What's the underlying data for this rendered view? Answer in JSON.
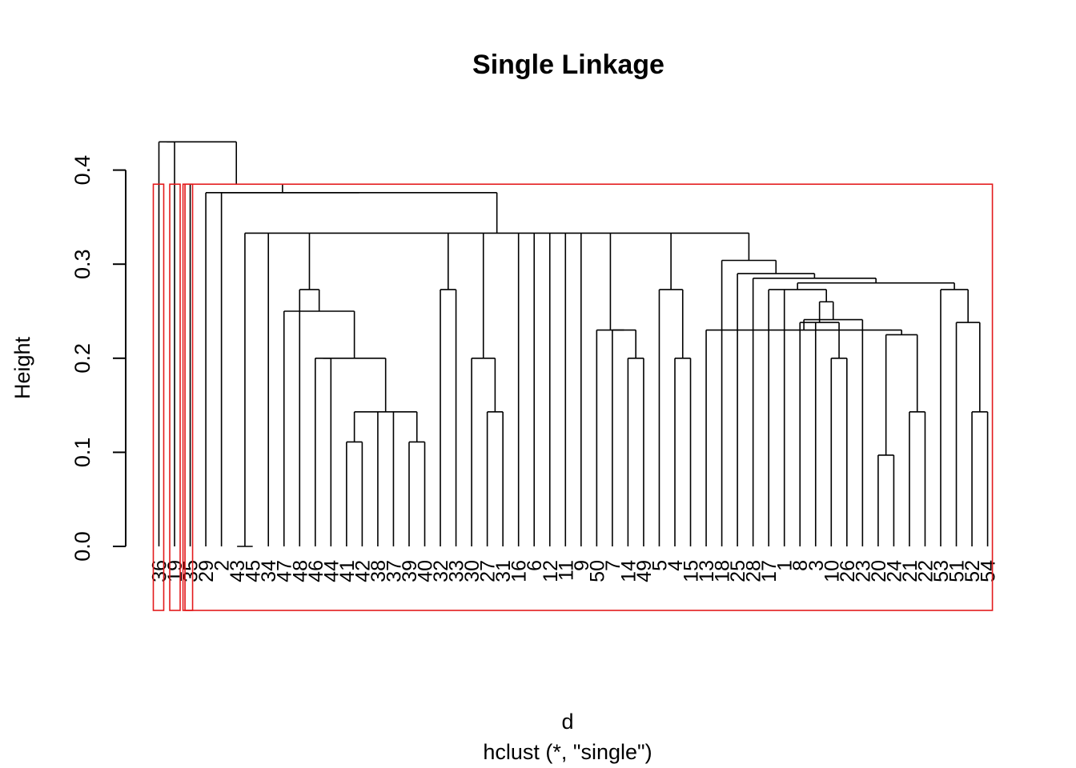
{
  "chart_data": {
    "type": "dendrogram",
    "title": "Single Linkage",
    "xlabel": "d",
    "sub": "hclust (*, \"single\")",
    "ylabel": "Height",
    "ylim": [
      0,
      0.43
    ],
    "yticks": [
      "0.0",
      "0.1",
      "0.2",
      "0.3",
      "0.4"
    ],
    "leaves": [
      "36",
      "19",
      "35",
      "29",
      "2",
      "43",
      "45",
      "34",
      "47",
      "48",
      "46",
      "44",
      "41",
      "42",
      "38",
      "37",
      "39",
      "40",
      "32",
      "33",
      "30",
      "27",
      "31",
      "16",
      "6",
      "12",
      "11",
      "9",
      "50",
      "7",
      "14",
      "49",
      "5",
      "4",
      "15",
      "13",
      "18",
      "25",
      "28",
      "17",
      "1",
      "8",
      "3",
      "10",
      "26",
      "23",
      "20",
      "24",
      "21",
      "22",
      "53",
      "51",
      "52",
      "54"
    ],
    "merges": [
      {
        "left": "43",
        "right": "45",
        "height": 0.0
      },
      {
        "left": "20",
        "right": "24",
        "height": 0.097
      },
      {
        "left": "41",
        "right": "42",
        "height": 0.111
      },
      {
        "left": "39",
        "right": "40",
        "height": 0.111
      },
      {
        "left": "27",
        "right": "31",
        "height": 0.143
      },
      {
        "left": "21",
        "right": "22",
        "height": 0.143
      },
      {
        "left": "52",
        "right": "54",
        "height": 0.143
      },
      {
        "left": "(41,42)",
        "right": "38",
        "height": 0.143
      },
      {
        "left": "((41,42),38)",
        "right": "37",
        "height": 0.143
      },
      {
        "left": "(((41,42),38),37)",
        "right": "(39,40)",
        "height": 0.143
      },
      {
        "left": "46",
        "right": "44",
        "height": 0.2
      },
      {
        "left": "(46,44)",
        "right": "(41..40)",
        "height": 0.2
      },
      {
        "left": "30",
        "right": "(27,31)",
        "height": 0.2
      },
      {
        "left": "14",
        "right": "49",
        "height": 0.2
      },
      {
        "left": "4",
        "right": "15",
        "height": 0.2
      },
      {
        "left": "10",
        "right": "26",
        "height": 0.2
      },
      {
        "left": "(20,24)",
        "right": "(21,22)",
        "height": 0.225
      },
      {
        "left": "7",
        "right": "(14,49)",
        "height": 0.23
      },
      {
        "left": "50",
        "right": "(7,14,49)",
        "height": 0.23
      },
      {
        "left": "13",
        "right": "(20,24,21,22)",
        "height": 0.23
      },
      {
        "left": "8",
        "right": "3",
        "height": 0.238
      },
      {
        "left": "(8,3)",
        "right": "(10,26)",
        "height": 0.238
      },
      {
        "left": "51",
        "right": "(52,54)",
        "height": 0.238
      },
      {
        "left": "23",
        "right": "(13,20,24,21,22)",
        "height": 0.241
      },
      {
        "left": "47",
        "right": "(46..40)",
        "height": 0.25
      },
      {
        "left": "(8,3,10,26)",
        "right": "(23..22)",
        "height": 0.26
      },
      {
        "left": "48",
        "right": "(47..40)",
        "height": 0.273
      },
      {
        "left": "32",
        "right": "33",
        "height": 0.273
      },
      {
        "left": "5",
        "right": "(4,15)",
        "height": 0.273
      },
      {
        "left": "17",
        "right": "1",
        "height": 0.273
      },
      {
        "left": "53",
        "right": "(51,52,54)",
        "height": 0.273
      },
      {
        "left": "(17,1)",
        "right": "(8..22)",
        "height": 0.273
      },
      {
        "left": "(17..22)",
        "right": "(53..54)",
        "height": 0.28
      },
      {
        "left": "28",
        "right": "(17..54)",
        "height": 0.285
      },
      {
        "left": "25",
        "right": "(28..54)",
        "height": 0.29
      },
      {
        "left": "18",
        "right": "(25..54)",
        "height": 0.304
      },
      {
        "left": "(34..13 group)",
        "right": "(18..54)",
        "height": 0.333
      },
      {
        "left": "(43,45)",
        "right": "(34..54)",
        "height": 0.333
      },
      {
        "left": "2",
        "right": "(43..54)",
        "height": 0.376
      },
      {
        "left": "29",
        "right": "(2..54)",
        "height": 0.376
      },
      {
        "left": "35",
        "right": "(29..54)",
        "height": 0.385
      },
      {
        "left": "36",
        "right": "19",
        "height": 0.43
      },
      {
        "left": "(36,19)",
        "right": "(35..54)",
        "height": 0.43
      }
    ],
    "rect_clusters": 4,
    "rect_color": "#e31a1c",
    "line_color": "#000000"
  }
}
